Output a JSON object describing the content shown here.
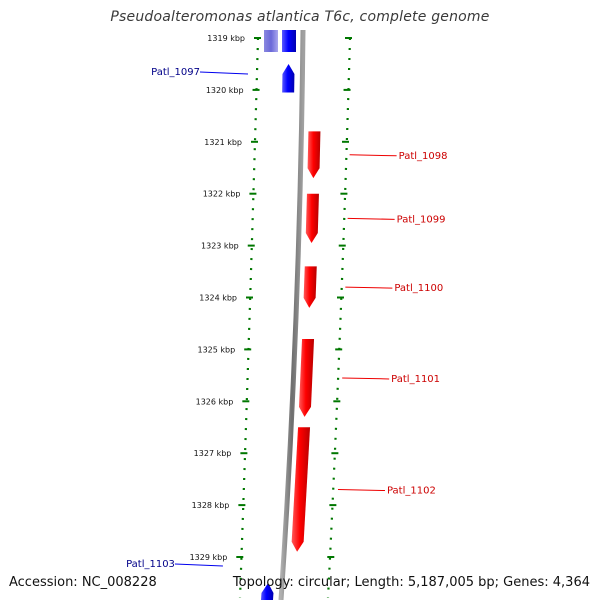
{
  "title": "Pseudoalteromonas atlantica T6c, complete genome",
  "accession_text": "Accession: NC_008228",
  "summary_text": "Topology: circular; Length: 5,187,005 bp; Genes: 4,364",
  "colors": {
    "forward_gene": "#ee0000",
    "reverse_gene": "#0000ee",
    "backbone": "#888888",
    "dotted_track": "#007700",
    "forward_label": "#cc0000",
    "reverse_label": "#000088"
  },
  "scale": {
    "unit": "kbp",
    "ticks": [
      1319,
      1320,
      1321,
      1322,
      1323,
      1324,
      1325,
      1326,
      1327,
      1328,
      1329
    ]
  },
  "genes": [
    {
      "name": "Patl_1097",
      "strand": "reverse",
      "start_kbp": 1319.5,
      "end_kbp": 1320.05
    },
    {
      "name": "Patl_1098",
      "strand": "forward",
      "start_kbp": 1320.8,
      "end_kbp": 1321.7
    },
    {
      "name": "Patl_1099",
      "strand": "forward",
      "start_kbp": 1322.0,
      "end_kbp": 1322.95
    },
    {
      "name": "Patl_1100",
      "strand": "forward",
      "start_kbp": 1323.4,
      "end_kbp": 1324.2
    },
    {
      "name": "Patl_1101",
      "strand": "forward",
      "start_kbp": 1324.8,
      "end_kbp": 1326.3
    },
    {
      "name": "Patl_1102",
      "strand": "forward",
      "start_kbp": 1326.5,
      "end_kbp": 1328.9
    },
    {
      "name": "Patl_1103",
      "strand": "reverse",
      "start_kbp": 1329.5,
      "end_kbp": 1329.9
    }
  ]
}
